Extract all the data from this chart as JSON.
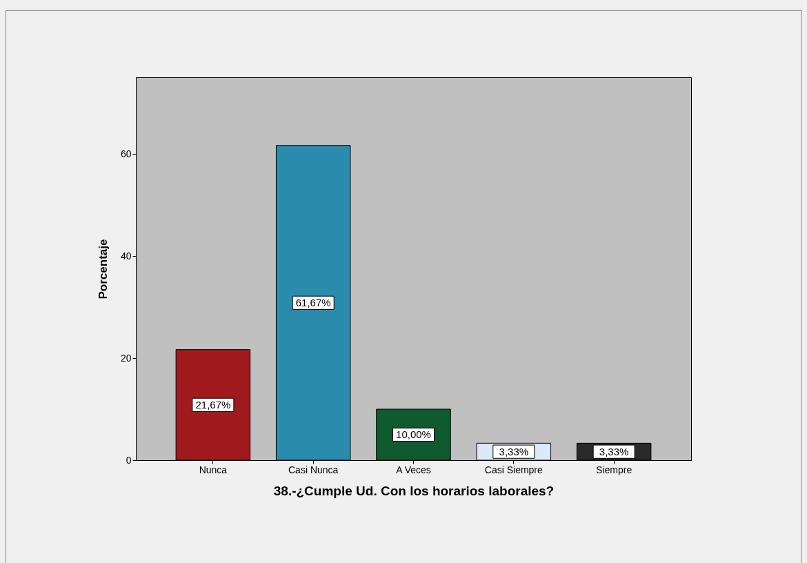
{
  "chart_data": {
    "type": "bar",
    "xlabel": "38.-¿Cumple Ud. Con los horarios laborales?",
    "ylabel": "Porcentaje",
    "categories": [
      "Nunca",
      "Casi Nunca",
      "A Veces",
      "Casi Siempre",
      "Siempre"
    ],
    "values": [
      21.67,
      61.67,
      10.0,
      3.33,
      3.33
    ],
    "colors": [
      "#a01a1e",
      "#2a8bac",
      "#0f5a2e",
      "#dce9f7",
      "#2a2a2a"
    ],
    "value_labels": [
      "21,67%",
      "61,67%",
      "10,00%",
      "3,33%",
      "3,33%"
    ],
    "ylim": [
      0,
      75
    ],
    "yticks": [
      0,
      20,
      40,
      60
    ],
    "grid": false
  }
}
